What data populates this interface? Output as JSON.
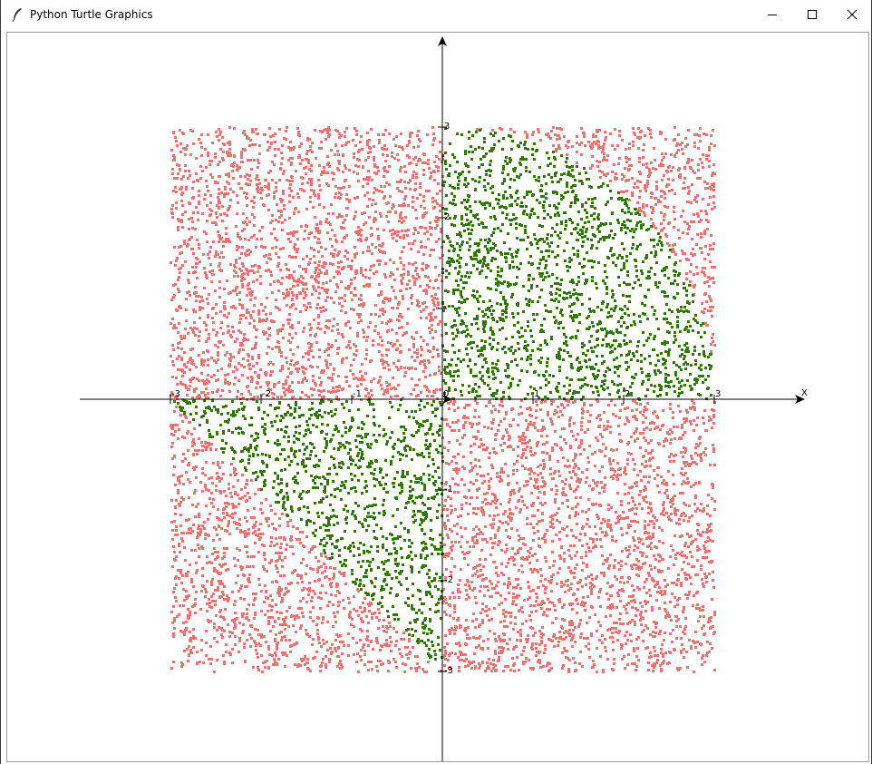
{
  "window": {
    "title": "Python Turtle Graphics",
    "icons": {
      "app": "feather-icon",
      "minimize": "minimize-icon",
      "maximize": "maximize-icon",
      "close": "close-icon"
    }
  },
  "chart_data": {
    "type": "scatter",
    "title": "",
    "xlabel": "X",
    "ylabel": "",
    "xlim": [
      -4,
      4
    ],
    "ylim": [
      -4,
      4
    ],
    "sample_region": {
      "x": [
        -3,
        3
      ],
      "y": [
        -3,
        3
      ]
    },
    "x_ticks": [
      -3,
      -2,
      -1,
      0,
      1,
      2,
      3
    ],
    "x_tick_labels": [
      "-3",
      "-2",
      "-1",
      "0",
      "1",
      "2",
      "3"
    ],
    "y_ticks": [
      -3,
      -2,
      -1,
      1,
      2,
      3
    ],
    "y_tick_labels": [
      "-3",
      "-2",
      "-1",
      "",
      "2",
      "3"
    ],
    "grid": false,
    "series": [
      {
        "color": "#f07070",
        "region": "outside",
        "approx_count": 7000
      },
      {
        "color": "#2e7a00",
        "region": "inside",
        "approx_count": 2300
      }
    ],
    "inside_region": {
      "description": "quarter disc of radius 3 in quadrant I; triangle with vertices (0,0), (-3,0), (0,-3) in quadrant III",
      "quadrant_I_radius": 3,
      "quadrant_III_triangle": [
        [
          0,
          0
        ],
        [
          -3,
          0
        ],
        [
          0,
          -3
        ]
      ]
    }
  }
}
